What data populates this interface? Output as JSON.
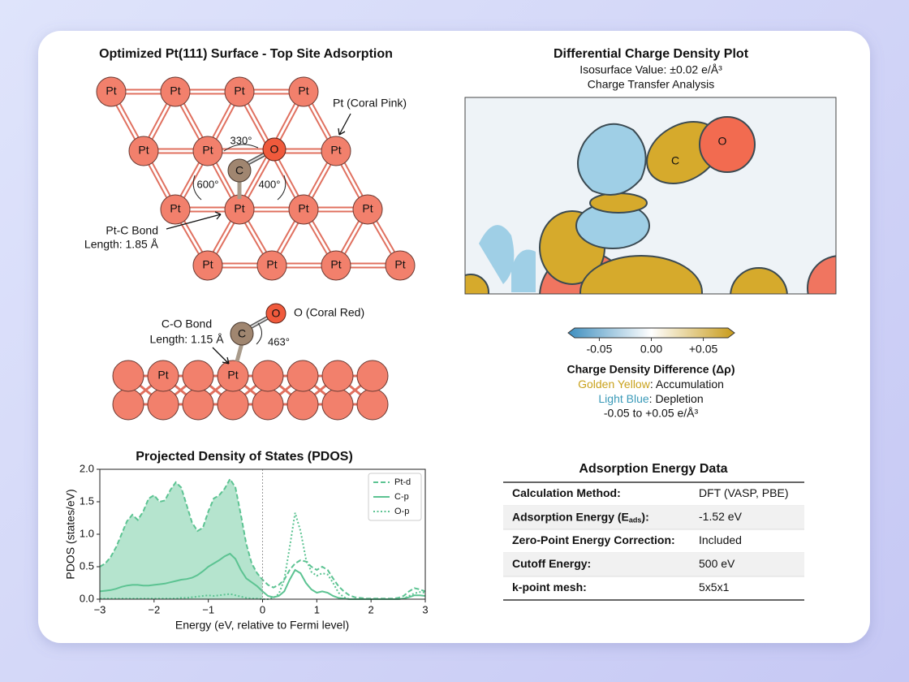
{
  "top_view": {
    "title": "Optimized Pt(111) Surface - Top Site Adsorption",
    "atom_pt": "Pt",
    "atom_c": "C",
    "atom_o": "O",
    "pt_note": "Pt (Coral Pink)",
    "bond_note": [
      "Pt-C Bond",
      "Length: 1.85 Å"
    ],
    "angles": [
      "330°",
      "600°",
      "400°"
    ]
  },
  "side_view": {
    "atom_pt": "Pt",
    "atom_c": "C",
    "atom_o": "O",
    "o_note": "O (Coral Red)",
    "bond_note": [
      "C-O Bond",
      "Length: 1.15 Å"
    ],
    "angle": "463°"
  },
  "charge_plot": {
    "title": "Differential Charge Density Plot",
    "subtitle": [
      "Isosurface Value: ±0.02 e/Å³",
      "Charge Transfer Analysis"
    ],
    "atom_c": "C",
    "atom_o": "O",
    "colorbar": {
      "lim": [
        -0.08,
        0.08
      ],
      "ticks": [
        -0.05,
        {
          "value": 0,
          "label": "0.00"
        },
        {
          "value": 0.05,
          "label": "+0.05"
        }
      ],
      "colors": [
        "#3f8fbf",
        "#ffffff",
        "#c89b1a"
      ]
    },
    "caption": {
      "title": "Charge Density Difference (Δρ)",
      "accum": {
        "name": "Golden Yellow",
        "color": "#c9a21c",
        "text": ": Accumulation"
      },
      "deplete": {
        "name": "Light Blue",
        "color": "#3a9ab8",
        "text": ": Depletion"
      },
      "range": "-0.05 to +0.05 e/Å³"
    }
  },
  "chart_data": {
    "type": "line",
    "title": "Projected Density of States (PDOS)",
    "xlabel": "Energy (eV, relative to Fermi level)",
    "ylabel": "PDOS (states/eV)",
    "x": [
      -3.0,
      -2.9,
      -2.8,
      -2.7,
      -2.6,
      -2.5,
      -2.4,
      -2.3,
      -2.2,
      -2.1,
      -2.0,
      -1.9,
      -1.8,
      -1.7,
      -1.6,
      -1.5,
      -1.4,
      -1.3,
      -1.2,
      -1.1,
      -1.0,
      -0.9,
      -0.8,
      -0.7,
      -0.6,
      -0.5,
      -0.4,
      -0.3,
      -0.2,
      -0.1,
      0.0,
      0.1,
      0.2,
      0.3,
      0.4,
      0.5,
      0.6,
      0.7,
      0.8,
      0.9,
      1.0,
      1.1,
      1.2,
      1.3,
      1.4,
      1.5,
      1.6,
      1.7,
      1.8,
      1.9,
      2.0,
      2.1,
      2.2,
      2.3,
      2.4,
      2.5,
      2.6,
      2.7,
      2.8,
      2.9,
      3.0
    ],
    "series": [
      {
        "name": "Pt-d",
        "color": "#5cc392",
        "linestyle": "dashed",
        "fill": true,
        "values": [
          0.5,
          0.55,
          0.65,
          0.8,
          1.0,
          1.2,
          1.3,
          1.22,
          1.35,
          1.55,
          1.6,
          1.5,
          1.52,
          1.68,
          1.8,
          1.72,
          1.45,
          1.18,
          1.05,
          1.1,
          1.35,
          1.55,
          1.6,
          1.7,
          1.85,
          1.72,
          1.3,
          0.85,
          0.55,
          0.4,
          0.3,
          0.22,
          0.18,
          0.22,
          0.3,
          0.45,
          0.55,
          0.6,
          0.58,
          0.5,
          0.45,
          0.5,
          0.45,
          0.32,
          0.2,
          0.12,
          0.06,
          0.03,
          0.02,
          0.01,
          0.01,
          0.01,
          0.01,
          0.01,
          0.01,
          0.02,
          0.05,
          0.12,
          0.17,
          0.15,
          0.12
        ]
      },
      {
        "name": "C-p",
        "color": "#5cc392",
        "linestyle": "solid",
        "values": [
          0.12,
          0.13,
          0.14,
          0.16,
          0.19,
          0.21,
          0.22,
          0.22,
          0.21,
          0.21,
          0.22,
          0.23,
          0.24,
          0.26,
          0.28,
          0.3,
          0.31,
          0.33,
          0.37,
          0.43,
          0.5,
          0.55,
          0.6,
          0.66,
          0.7,
          0.62,
          0.45,
          0.32,
          0.26,
          0.2,
          0.12,
          0.05,
          0.03,
          0.05,
          0.12,
          0.3,
          0.45,
          0.4,
          0.25,
          0.15,
          0.1,
          0.12,
          0.1,
          0.05,
          0.02,
          0.01,
          0,
          0,
          0,
          0,
          0,
          0,
          0,
          0,
          0,
          0,
          0.01,
          0.03,
          0.06,
          0.06,
          0.05
        ]
      },
      {
        "name": "O-p",
        "color": "#5cc392",
        "linestyle": "dotted",
        "values": [
          0.01,
          0.01,
          0.01,
          0.01,
          0.01,
          0.01,
          0.01,
          0.01,
          0.01,
          0.01,
          0.01,
          0.01,
          0.01,
          0.01,
          0.01,
          0.02,
          0.02,
          0.03,
          0.04,
          0.05,
          0.06,
          0.05,
          0.06,
          0.07,
          0.08,
          0.06,
          0.04,
          0.02,
          0.01,
          0.01,
          0,
          0,
          0.02,
          0.08,
          0.3,
          0.8,
          1.33,
          1.05,
          0.62,
          0.42,
          0.36,
          0.4,
          0.38,
          0.25,
          0.1,
          0.03,
          0,
          0,
          0,
          0,
          0,
          0,
          0,
          0,
          0,
          0,
          0.01,
          0.05,
          0.09,
          0.11,
          0.1
        ]
      }
    ],
    "xlim": [
      -3,
      3
    ],
    "ylim": [
      0,
      2
    ],
    "xticks": [
      {
        "value": -3,
        "label": "−3"
      },
      {
        "value": -2,
        "label": "−2"
      },
      {
        "value": -1,
        "label": "−1"
      },
      0,
      1,
      2,
      3
    ],
    "yticks": [
      {
        "value": 0,
        "label": "0.0"
      },
      {
        "value": 0.5,
        "label": "0.5"
      },
      {
        "value": 1,
        "label": "1.0"
      },
      {
        "value": 1.5,
        "label": "1.5"
      },
      {
        "value": 2,
        "label": "2.0"
      }
    ],
    "vline": 0,
    "legend": "upper right"
  },
  "table": {
    "title": "Adsorption Energy Data",
    "rows": [
      [
        "Calculation Method:",
        "DFT (VASP, PBE)"
      ],
      [
        {
          "text": "Adsorption Energy (E",
          "sub": "ads",
          "tail": "):"
        },
        "-1.52 eV"
      ],
      [
        "Zero-Point Energy Correction:",
        "Included"
      ],
      [
        "Cutoff Energy:",
        "500 eV"
      ],
      [
        "k-point mesh:",
        "5x5x1"
      ]
    ]
  }
}
